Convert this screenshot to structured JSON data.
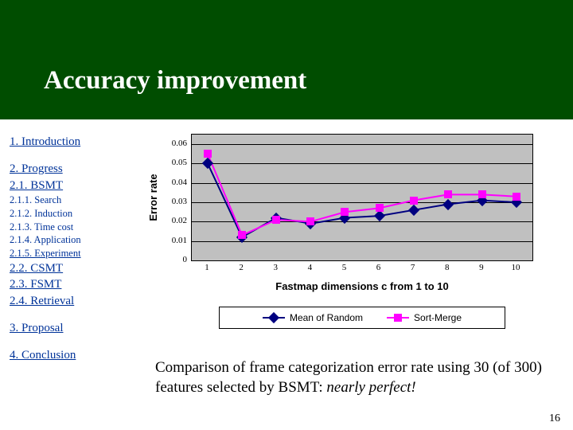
{
  "header": {
    "title": "Accuracy improvement",
    "bg_color": "#004d00",
    "title_color": "#ffffff"
  },
  "sidebar": {
    "groups": [
      {
        "items": [
          {
            "label": "1. Introduction",
            "underline": true
          }
        ]
      },
      {
        "items": [
          {
            "label": "2. Progress",
            "underline": true
          },
          {
            "label": "2.1. BSMT",
            "underline": true
          },
          {
            "label": "2.1.1. Search",
            "small": true
          },
          {
            "label": "2.1.2. Induction",
            "small": true
          },
          {
            "label": "2.1.3. Time cost",
            "small": true
          },
          {
            "label": "2.1.4. Application",
            "small": true
          },
          {
            "label": "2.1.5. Experiment",
            "small": true,
            "underline": true
          },
          {
            "label": "2.2. CSMT",
            "underline": true
          },
          {
            "label": "2.3. FSMT",
            "underline": true
          },
          {
            "label": "2.4. Retrieval",
            "underline": true
          }
        ]
      },
      {
        "items": [
          {
            "label": "3. Proposal",
            "underline": true
          }
        ]
      },
      {
        "items": [
          {
            "label": "4. Conclusion",
            "underline": true
          }
        ]
      }
    ],
    "link_color": "#003399"
  },
  "chart": {
    "type": "line",
    "plot_bg": "#c0c0c0",
    "grid_color": "#000000",
    "ylabel": "Error rate",
    "xlabel": "Fastmap dimensions c from 1 to 10",
    "ymin": 0,
    "ymax": 0.065,
    "yticks": [
      0,
      0.01,
      0.02,
      0.03,
      0.04,
      0.05,
      0.06
    ],
    "xticks": [
      1,
      2,
      3,
      4,
      5,
      6,
      7,
      8,
      9,
      10
    ],
    "series": [
      {
        "name": "Mean of Random",
        "color": "#000080",
        "marker": "diamond",
        "values": [
          0.05,
          0.012,
          0.022,
          0.019,
          0.022,
          0.023,
          0.026,
          0.029,
          0.031,
          0.03
        ]
      },
      {
        "name": "Sort-Merge",
        "color": "#ff00ff",
        "marker": "square",
        "values": [
          0.055,
          0.013,
          0.021,
          0.02,
          0.025,
          0.027,
          0.031,
          0.034,
          0.034,
          0.033
        ]
      }
    ],
    "legend": {
      "border_color": "#000000"
    }
  },
  "caption": {
    "text_pre": "Comparison of frame categorization error rate using 30 (of 300) features selected by BSMT: ",
    "text_italic": "nearly perfect!"
  },
  "page_number": "16"
}
